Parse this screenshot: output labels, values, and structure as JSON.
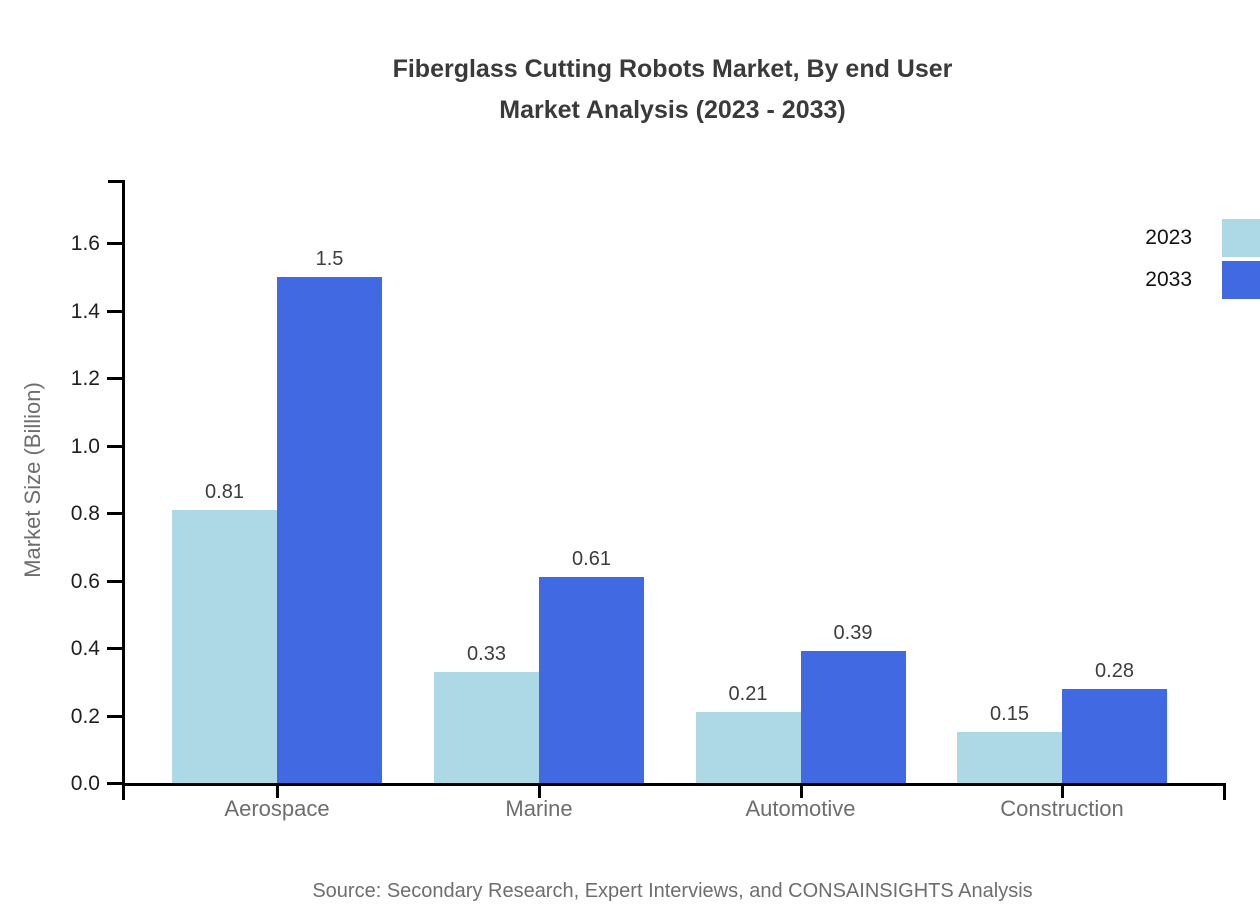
{
  "chart_data": {
    "type": "bar",
    "title_line1": "Fiberglass Cutting Robots Market, By end User",
    "title_line2": "Market Analysis (2023 - 2033)",
    "categories": [
      "Aerospace",
      "Marine",
      "Automotive",
      "Construction"
    ],
    "series": [
      {
        "name": "2023",
        "color": "#add8e6",
        "values": [
          0.81,
          0.33,
          0.21,
          0.15
        ]
      },
      {
        "name": "2033",
        "color": "#4169e1",
        "values": [
          1.5,
          0.61,
          0.39,
          0.28
        ]
      }
    ],
    "value_labels": [
      [
        "0.81",
        "0.33",
        "0.21",
        "0.15"
      ],
      [
        "1.5",
        "0.61",
        "0.39",
        "0.28"
      ]
    ],
    "xlabel": "",
    "ylabel": "Market Size (Billion)",
    "yticks": [
      "0.0",
      "0.2",
      "0.4",
      "0.6",
      "0.8",
      "1.0",
      "1.2",
      "1.4",
      "1.6"
    ],
    "ylim": [
      0,
      1.787
    ],
    "grid": false,
    "legend_position": "top-right",
    "source": "Source: Secondary Research, Expert Interviews, and CONSAINSIGHTS Analysis"
  },
  "colors": {
    "background": "#ffffff",
    "axis": "#000000",
    "title_text": "#3a3a3a",
    "ytick_text": "#1f1f1f",
    "category_text": "#6e6e6e",
    "value_text": "#3d3d3d",
    "legend_text": "#111111",
    "source_text": "#6e6e6e",
    "series_2023": "#add8e6",
    "series_2033": "#4169e1"
  }
}
